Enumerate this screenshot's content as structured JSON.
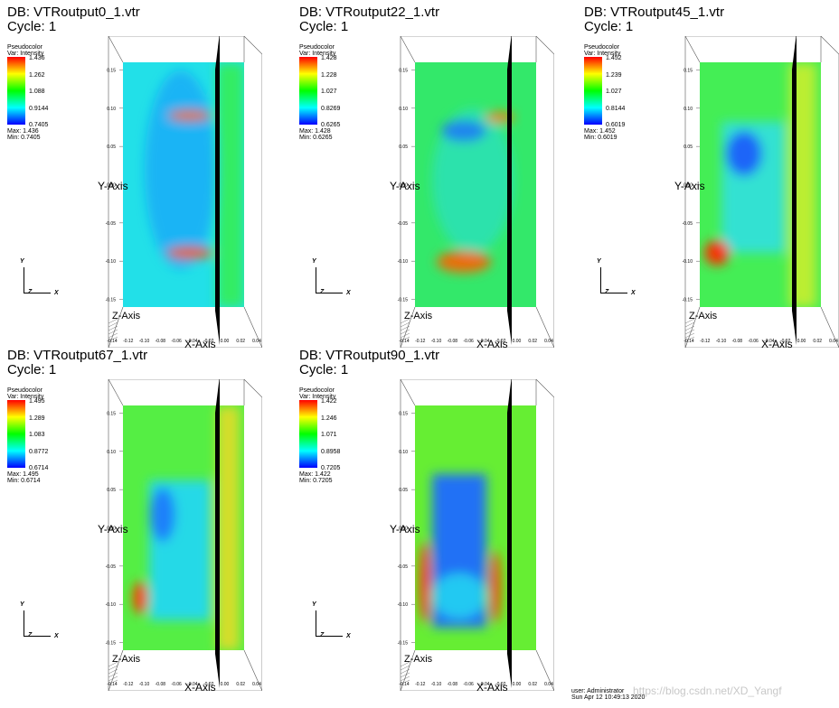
{
  "chart_data": [
    {
      "type": "heatmap",
      "db_label": "DB: VTRoutput0_1.vtr",
      "cycle_label": "Cycle: 1",
      "plot_name": "Pseudocolor",
      "var_label": "Var: Intensity",
      "legend_ticks": [
        "1.436",
        "1.262",
        "1.088",
        "0.9144",
        "0.7405"
      ],
      "max_label": "Max: 1.436",
      "min_label": "Min: 0.7405",
      "max": 1.436,
      "min": 0.7405,
      "y_axis_label": "Y-Axis",
      "x_axis_label": "X-Axis",
      "z_axis_label": "Z-Axis",
      "triad": [
        "Y",
        "Z",
        "X"
      ]
    },
    {
      "type": "heatmap",
      "db_label": "DB: VTRoutput22_1.vtr",
      "cycle_label": "Cycle: 1",
      "plot_name": "Pseudocolor",
      "var_label": "Var: Intensity",
      "legend_ticks": [
        "1.428",
        "1.228",
        "1.027",
        "0.8269",
        "0.6265"
      ],
      "max_label": "Max: 1.428",
      "min_label": "Min: 0.6265",
      "max": 1.428,
      "min": 0.6265,
      "y_axis_label": "Y-Axis",
      "x_axis_label": "X-Axis",
      "z_axis_label": "Z-Axis",
      "triad": [
        "Y",
        "Z",
        "X"
      ]
    },
    {
      "type": "heatmap",
      "db_label": "DB: VTRoutput45_1.vtr",
      "cycle_label": "Cycle: 1",
      "plot_name": "Pseudocolor",
      "var_label": "Var: Intensity",
      "legend_ticks": [
        "1.452",
        "1.239",
        "1.027",
        "0.8144",
        "0.6019"
      ],
      "max_label": "Max: 1.452",
      "min_label": "Min: 0.6019",
      "max": 1.452,
      "min": 0.6019,
      "y_axis_label": "Y-Axis",
      "x_axis_label": "X-Axis",
      "z_axis_label": "Z-Axis",
      "triad": [
        "Y",
        "Z",
        "X"
      ]
    },
    {
      "type": "heatmap",
      "db_label": "DB: VTRoutput67_1.vtr",
      "cycle_label": "Cycle: 1",
      "plot_name": "Pseudocolor",
      "var_label": "Var: Intensity",
      "legend_ticks": [
        "1.495",
        "1.289",
        "1.083",
        "0.8772",
        "0.6714"
      ],
      "max_label": "Max: 1.495",
      "min_label": "Min: 0.6714",
      "max": 1.495,
      "min": 0.6714,
      "y_axis_label": "Y-Axis",
      "x_axis_label": "X-Axis",
      "z_axis_label": "Z-Axis",
      "triad": [
        "Y",
        "Z",
        "X"
      ]
    },
    {
      "type": "heatmap",
      "db_label": "DB: VTRoutput90_1.vtr",
      "cycle_label": "Cycle: 1",
      "plot_name": "Pseudocolor",
      "var_label": "Var: Intensity",
      "legend_ticks": [
        "1.422",
        "1.246",
        "1.071",
        "0.8958",
        "0.7205"
      ],
      "max_label": "Max: 1.422",
      "min_label": "Min: 0.7205",
      "max": 1.422,
      "min": 0.7205,
      "y_axis_label": "Y-Axis",
      "x_axis_label": "X-Axis",
      "z_axis_label": "Z-Axis",
      "triad": [
        "Y",
        "Z",
        "X"
      ]
    }
  ],
  "axes": {
    "y_ticks": [
      "0.15",
      "0.10",
      "0.05",
      "0.00",
      "-0.05",
      "-0.10",
      "-0.15"
    ],
    "y_values": [
      0.15,
      0.1,
      0.05,
      0.0,
      -0.05,
      -0.1,
      -0.15
    ],
    "x_ticks": [
      "-0.14",
      "-0.12",
      "-0.10",
      "-0.08",
      "-0.06",
      "-0.04",
      "-0.02",
      "0.00",
      "0.02",
      "0.04"
    ],
    "x_values": [
      -0.14,
      -0.12,
      -0.1,
      -0.08,
      -0.06,
      -0.04,
      -0.02,
      0.0,
      0.02,
      0.04
    ],
    "xlim": [
      -0.14,
      0.04
    ],
    "ylim": [
      -0.16,
      0.16
    ]
  },
  "colors": {
    "colormap_top": "#ff0000",
    "colormap_upper": "#ffff00",
    "colormap_mid": "#00ff00",
    "colormap_lower": "#00ffff",
    "colormap_bottom": "#0000ff",
    "divider": "#000000"
  },
  "footer": {
    "user": "user: Administrator",
    "date": "Sun Apr 12 10:49:13 2020"
  },
  "watermark": "https://blog.csdn.net/XD_Yangf"
}
